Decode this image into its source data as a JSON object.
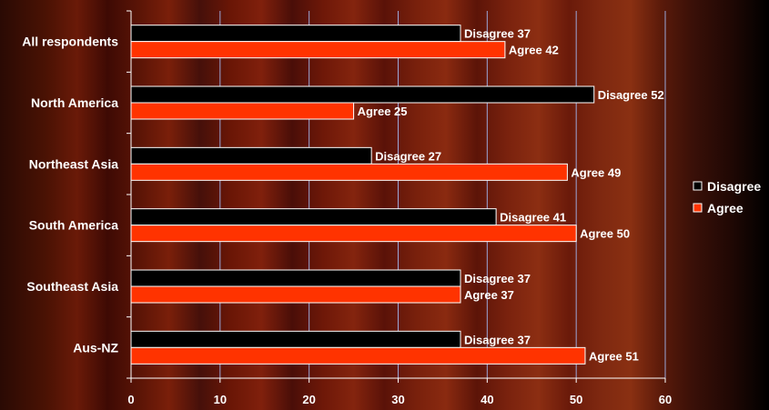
{
  "chart_data": {
    "type": "bar",
    "orientation": "horizontal",
    "categories": [
      "All respondents",
      "North America",
      "Northeast Asia",
      "South America",
      "Southeast Asia",
      "Aus-NZ"
    ],
    "series": [
      {
        "name": "Disagree",
        "values": [
          37,
          52,
          27,
          41,
          37,
          37
        ],
        "color": "#000000",
        "label_prefix": "Disagree"
      },
      {
        "name": "Agree",
        "values": [
          42,
          25,
          49,
          50,
          37,
          51
        ],
        "color": "#ff3300",
        "label_prefix": "Agree"
      }
    ],
    "xlim": [
      0,
      60
    ],
    "xticks": [
      0,
      10,
      20,
      30,
      40,
      50,
      60
    ],
    "grid": true,
    "legend_position": "right",
    "title": "",
    "xlabel": "",
    "ylabel": ""
  }
}
